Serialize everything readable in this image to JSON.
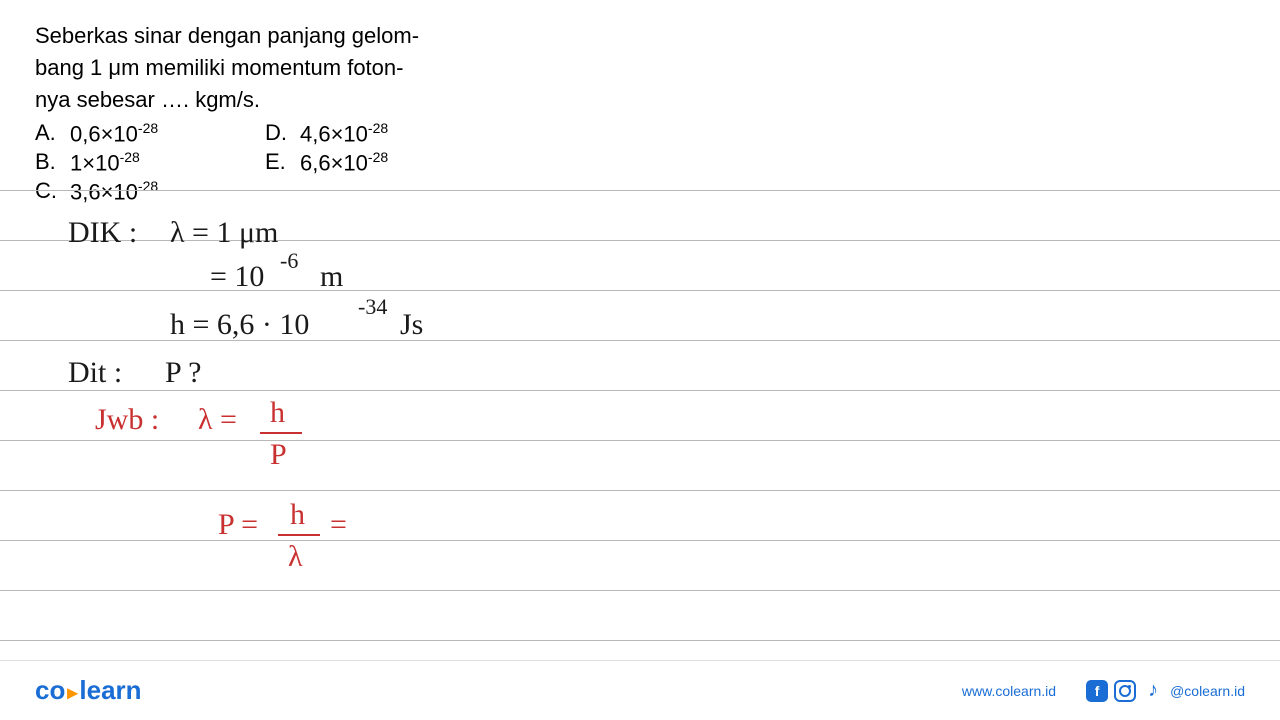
{
  "question": {
    "line1": "Seberkas sinar dengan panjang gelom-",
    "line2": "bang 1 μm memiliki momentum foton-",
    "line3": "nya sebesar …. kgm/s."
  },
  "options": [
    {
      "label": "A.",
      "value": "0,6×10",
      "exp": "-28"
    },
    {
      "label": "B.",
      "value": "1×10",
      "exp": "-28"
    },
    {
      "label": "C.",
      "value": "3,6×10",
      "exp": "-28"
    },
    {
      "label": "D.",
      "value": "4,6×10",
      "exp": "-28"
    },
    {
      "label": "E.",
      "value": "6,6×10",
      "exp": "-28"
    }
  ],
  "handwriting": {
    "dik_label": "DIK :",
    "lambda1": "λ = 1 μm",
    "lambda2": "= 10",
    "lambda2_exp": "-6",
    "lambda2_unit": "m",
    "h_eq": "h = 6,6 · 10",
    "h_exp": "-34",
    "h_unit": "Js",
    "dit_label": "Dit :",
    "dit_q": "P ?",
    "jwb_label": "Jwb :",
    "lambda_formula_left": "λ =",
    "lambda_formula_num": "h",
    "lambda_formula_den": "P",
    "p_formula_left": "P =",
    "p_formula_num": "h",
    "p_formula_den": "λ",
    "p_formula_eq": "="
  },
  "ruled_lines": {
    "start": 50,
    "step": 50,
    "count": 10,
    "color": "#b8b8b8"
  },
  "footer": {
    "logo_co": "co",
    "logo_learn": "learn",
    "website": "www.colearn.id",
    "handle": "@colearn.id"
  },
  "colors": {
    "text": "#000000",
    "hw_black": "#1a1a1a",
    "hw_red": "#c93030",
    "brand_blue": "#1a6dd4",
    "brand_orange": "#ff9500",
    "rule": "#b8b8b8"
  }
}
